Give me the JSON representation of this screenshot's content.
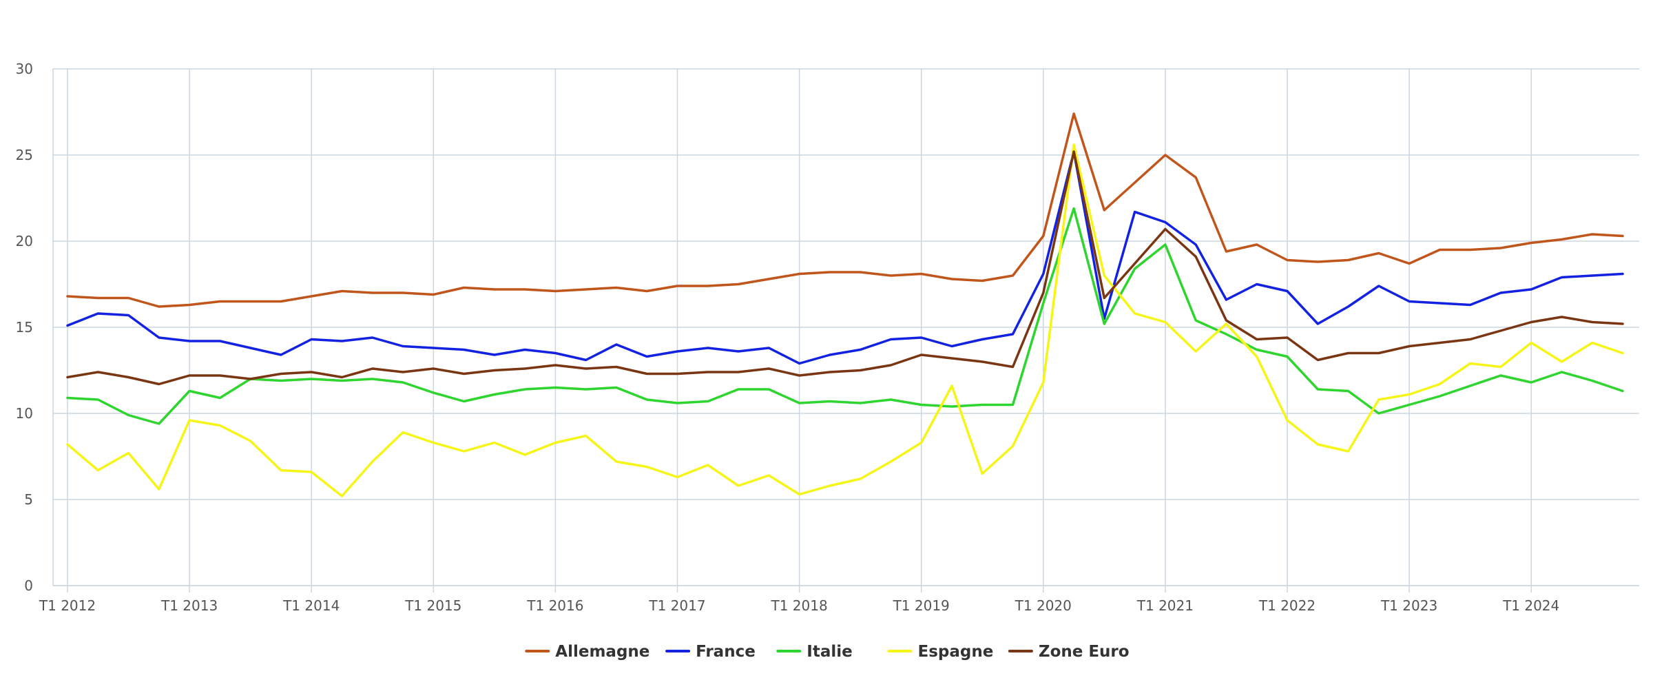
{
  "chart_data": {
    "type": "line",
    "title": "",
    "xlabel": "",
    "ylabel": "",
    "ylim": [
      0,
      30
    ],
    "yticks": [
      0,
      5,
      10,
      15,
      20,
      25,
      30
    ],
    "grid": true,
    "legend": "bottom-center",
    "x": [
      "T1 2012",
      "T2 2012",
      "T3 2012",
      "T4 2012",
      "T1 2013",
      "T2 2013",
      "T3 2013",
      "T4 2013",
      "T1 2014",
      "T2 2014",
      "T3 2014",
      "T4 2014",
      "T1 2015",
      "T2 2015",
      "T3 2015",
      "T4 2015",
      "T1 2016",
      "T2 2016",
      "T3 2016",
      "T4 2016",
      "T1 2017",
      "T2 2017",
      "T3 2017",
      "T4 2017",
      "T1 2018",
      "T2 2018",
      "T3 2018",
      "T4 2018",
      "T1 2019",
      "T2 2019",
      "T3 2019",
      "T4 2019",
      "T1 2020",
      "T2 2020",
      "T3 2020",
      "T4 2020",
      "T1 2021",
      "T2 2021",
      "T3 2021",
      "T4 2021",
      "T1 2022",
      "T2 2022",
      "T3 2022",
      "T4 2022",
      "T1 2023",
      "T2 2023",
      "T3 2023",
      "T4 2023",
      "T1 2024",
      "T2 2024",
      "T3 2024",
      "T4 2024"
    ],
    "xtick_labels": [
      "T1 2012",
      "T1 2013",
      "T1 2014",
      "T1 2015",
      "T1 2016",
      "T1 2017",
      "T1 2018",
      "T1 2019",
      "T1 2020",
      "T1 2021",
      "T1 2022",
      "T1 2023",
      "T1 2024"
    ],
    "series": [
      {
        "name": "Allemagne",
        "color": "#c0561b",
        "values": [
          16.8,
          16.7,
          16.7,
          16.2,
          16.3,
          16.5,
          16.5,
          16.5,
          16.8,
          17.1,
          17.0,
          17.0,
          16.9,
          17.3,
          17.2,
          17.2,
          17.1,
          17.2,
          17.3,
          17.1,
          17.4,
          17.4,
          17.5,
          17.8,
          18.1,
          18.2,
          18.2,
          18.0,
          18.1,
          17.8,
          17.7,
          18.0,
          20.3,
          27.4,
          21.8,
          23.4,
          25.0,
          23.7,
          19.4,
          19.8,
          18.9,
          18.8,
          18.9,
          19.3,
          18.7,
          19.5,
          19.5,
          19.6,
          19.9,
          20.1,
          20.4,
          20.3
        ]
      },
      {
        "name": "France",
        "color": "#1322e0",
        "values": [
          15.1,
          15.8,
          15.7,
          14.4,
          14.2,
          14.2,
          13.8,
          13.4,
          14.3,
          14.2,
          14.4,
          13.9,
          13.8,
          13.7,
          13.4,
          13.7,
          13.5,
          13.1,
          14.0,
          13.3,
          13.6,
          13.8,
          13.6,
          13.8,
          12.9,
          13.4,
          13.7,
          14.3,
          14.4,
          13.9,
          14.3,
          14.6,
          18.1,
          25.2,
          15.5,
          21.7,
          21.1,
          19.8,
          16.6,
          17.5,
          17.1,
          15.2,
          16.2,
          17.4,
          16.5,
          16.4,
          16.3,
          17.0,
          17.2,
          17.9,
          18.0,
          18.1
        ]
      },
      {
        "name": "Italie",
        "color": "#2ed52e",
        "values": [
          10.9,
          10.8,
          9.9,
          9.4,
          11.3,
          10.9,
          12.0,
          11.9,
          12.0,
          11.9,
          12.0,
          11.8,
          11.2,
          10.7,
          11.1,
          11.4,
          11.5,
          11.4,
          11.5,
          10.8,
          10.6,
          10.7,
          11.4,
          11.4,
          10.6,
          10.7,
          10.6,
          10.8,
          10.5,
          10.4,
          10.5,
          10.5,
          16.4,
          21.9,
          15.2,
          18.4,
          19.8,
          15.4,
          14.6,
          13.7,
          13.3,
          11.4,
          11.3,
          10.0,
          10.5,
          11.0,
          11.6,
          12.2,
          11.8,
          12.4,
          11.9,
          11.3
        ]
      },
      {
        "name": "Espagne",
        "color": "#f5f51a",
        "values": [
          8.2,
          6.7,
          7.7,
          5.6,
          9.6,
          9.3,
          8.4,
          6.7,
          6.6,
          5.2,
          7.2,
          8.9,
          8.3,
          7.8,
          8.3,
          7.6,
          8.3,
          8.7,
          7.2,
          6.9,
          6.3,
          7.0,
          5.8,
          6.4,
          5.3,
          5.8,
          6.2,
          7.2,
          8.3,
          11.6,
          6.5,
          8.1,
          11.8,
          25.6,
          18.0,
          15.8,
          15.3,
          13.6,
          15.2,
          13.3,
          9.6,
          8.2,
          7.8,
          10.8,
          11.1,
          11.7,
          12.9,
          12.7,
          14.1,
          13.0,
          14.1,
          13.5
        ]
      },
      {
        "name": "Zone Euro",
        "color": "#7a3513",
        "values": [
          12.1,
          12.4,
          12.1,
          11.7,
          12.2,
          12.2,
          12.0,
          12.3,
          12.4,
          12.1,
          12.6,
          12.4,
          12.6,
          12.3,
          12.5,
          12.6,
          12.8,
          12.6,
          12.7,
          12.3,
          12.3,
          12.4,
          12.4,
          12.6,
          12.2,
          12.4,
          12.5,
          12.8,
          13.4,
          13.2,
          13.0,
          12.7,
          17.0,
          25.2,
          16.7,
          18.7,
          20.7,
          19.1,
          15.4,
          14.3,
          14.4,
          13.1,
          13.5,
          13.5,
          13.9,
          14.1,
          14.3,
          14.8,
          15.3,
          15.6,
          15.3,
          15.2
        ]
      }
    ]
  }
}
